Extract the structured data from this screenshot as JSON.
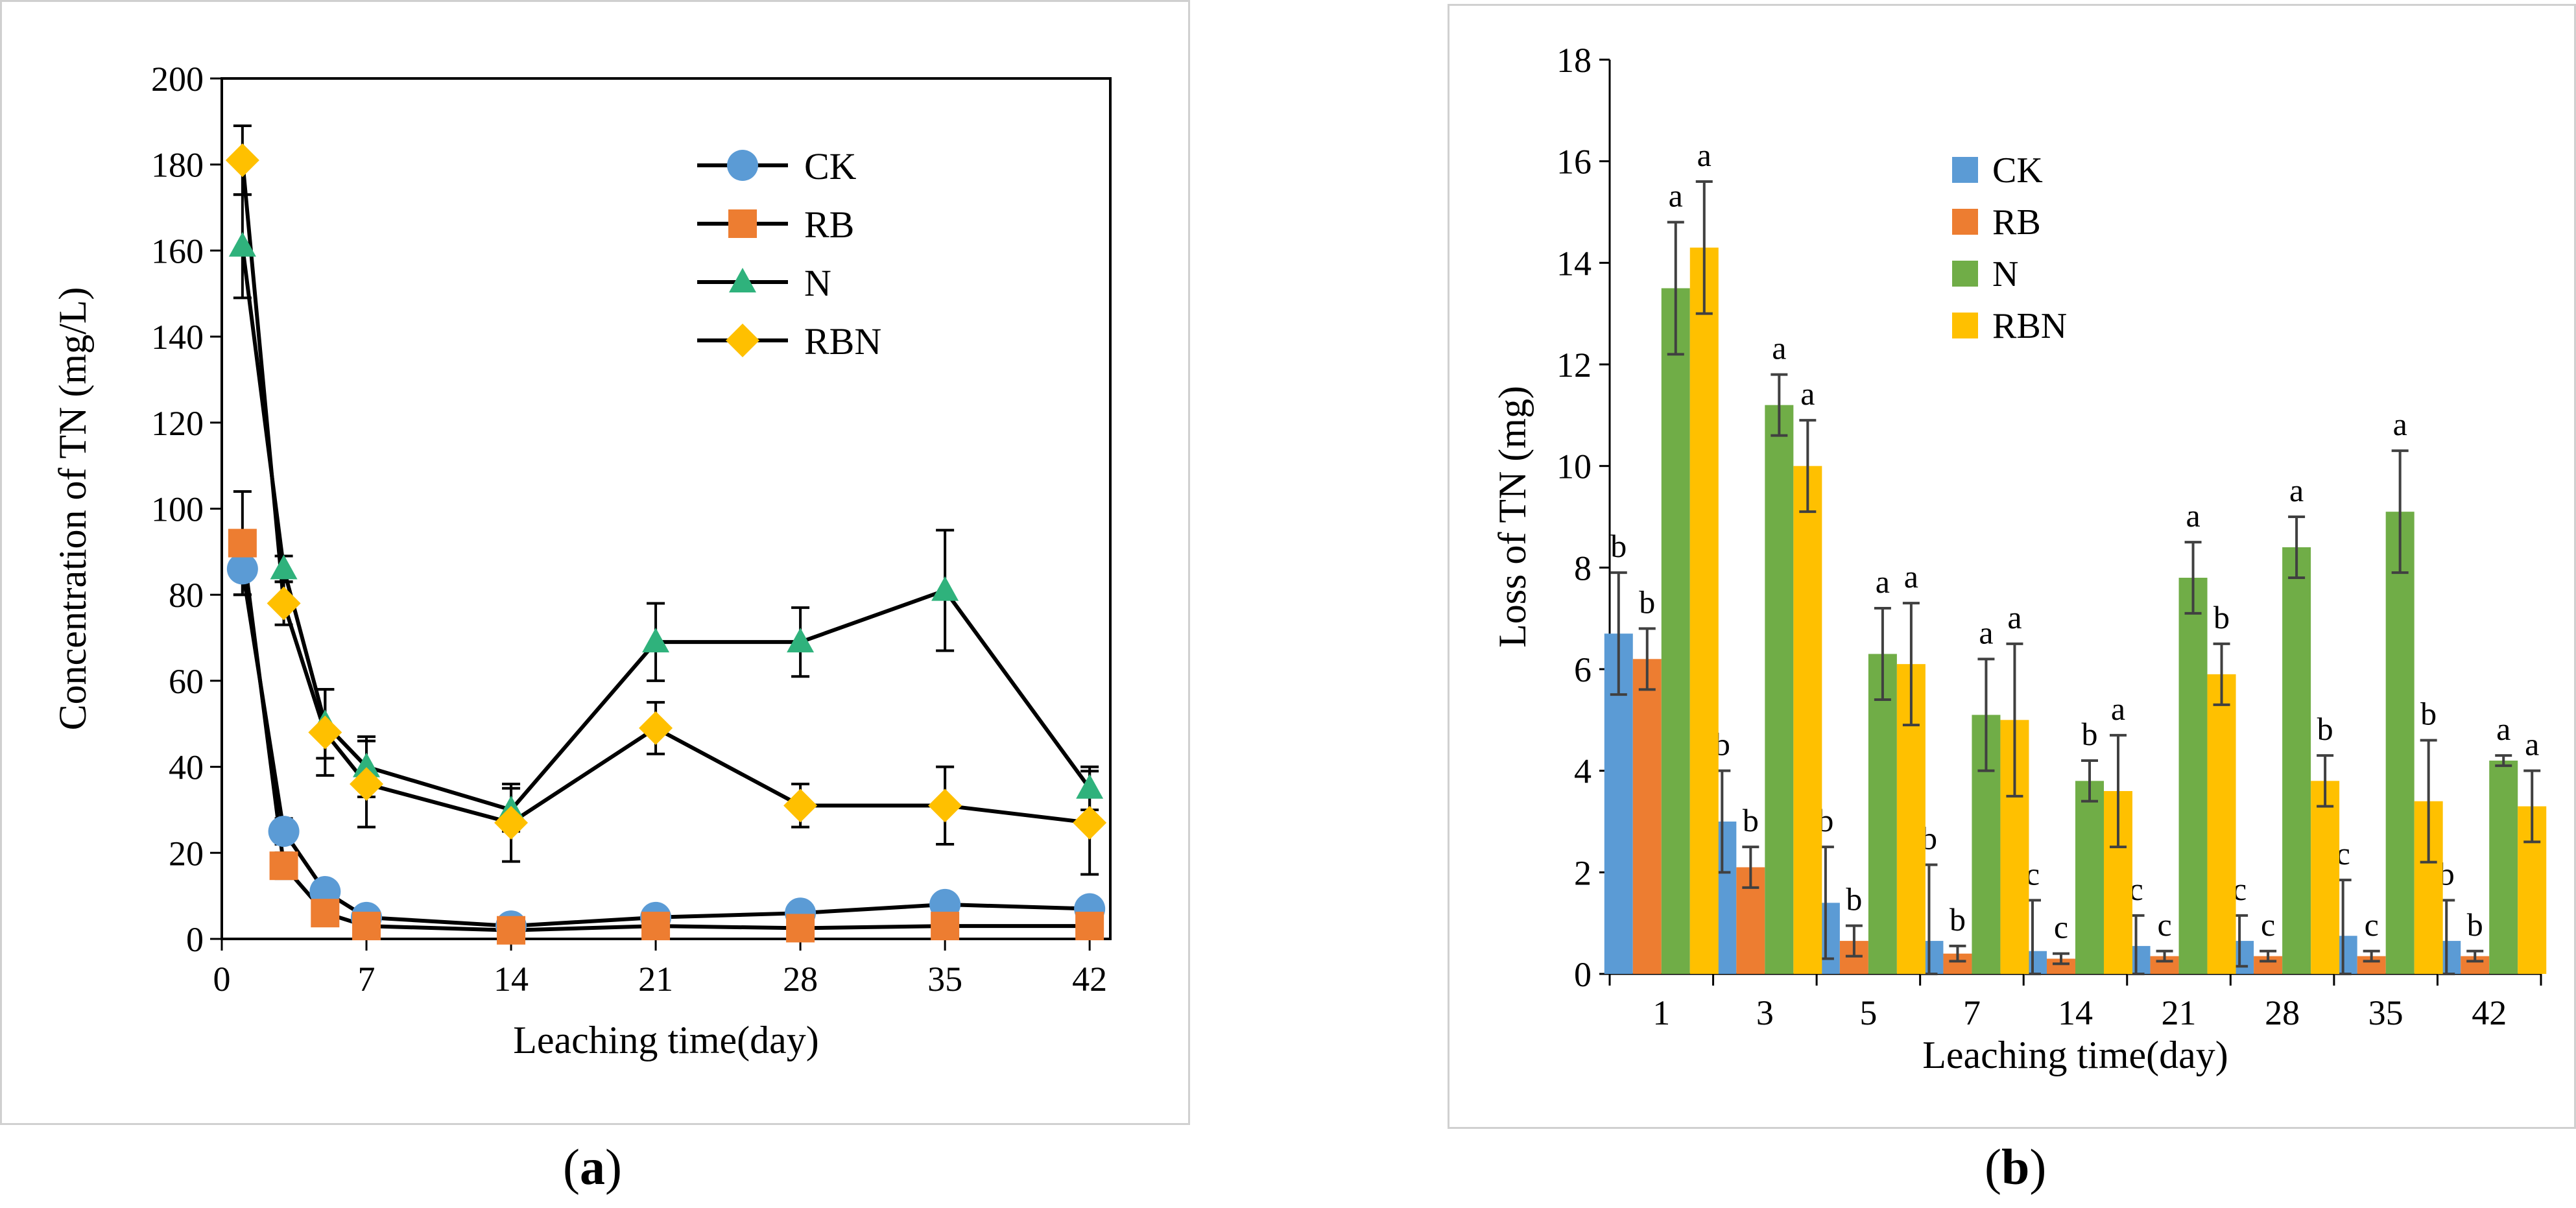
{
  "captions": {
    "a_open": "(",
    "a_letter": "a",
    "a_close": ")",
    "b_open": "(",
    "b_letter": "b",
    "b_close": ")"
  },
  "colors": {
    "CK": "#5B9BD5",
    "RB": "#ED7D31",
    "N": "#2FB27C",
    "RBN": "#FFC000",
    "N_bar": "#70AD47",
    "axis": "#000000"
  },
  "chart_data": [
    {
      "id": "a",
      "type": "line",
      "xlabel": "Leaching time(day)",
      "ylabel": "Concentration of  TN (mg/L)",
      "xlim": [
        0,
        43
      ],
      "ylim": [
        0,
        200
      ],
      "xticks": [
        0,
        7,
        14,
        21,
        28,
        35,
        42
      ],
      "yticks": [
        0,
        20,
        40,
        60,
        80,
        100,
        120,
        140,
        160,
        180,
        200
      ],
      "x": [
        1,
        3,
        5,
        7,
        14,
        21,
        28,
        35,
        42
      ],
      "legend_position": "top-right",
      "series": [
        {
          "name": "CK",
          "marker": "circle",
          "values": [
            86,
            25,
            11,
            5,
            3,
            5,
            6,
            8,
            7
          ],
          "errors": [
            6,
            3,
            2,
            1.5,
            1,
            1.5,
            1.5,
            2,
            1.5
          ]
        },
        {
          "name": "RB",
          "marker": "square",
          "values": [
            92,
            17,
            6,
            3,
            2,
            3,
            2.5,
            3,
            3
          ],
          "errors": [
            12,
            3,
            2,
            1,
            1,
            1,
            1,
            1,
            1
          ]
        },
        {
          "name": "N",
          "marker": "triangle",
          "values": [
            161,
            86,
            50,
            40,
            30,
            69,
            69,
            81,
            35
          ],
          "errors": [
            12,
            3,
            8,
            7,
            5,
            9,
            8,
            14,
            5
          ]
        },
        {
          "name": "RBN",
          "marker": "diamond",
          "values": [
            181,
            78,
            48,
            36,
            27,
            49,
            31,
            31,
            27
          ],
          "errors": [
            8,
            5,
            10,
            10,
            9,
            6,
            5,
            9,
            12
          ]
        }
      ]
    },
    {
      "id": "b",
      "type": "bar",
      "xlabel": "Leaching time(day)",
      "ylabel": "Loss of  TN  (mg)",
      "ylim": [
        0,
        18
      ],
      "yticks": [
        0,
        2,
        4,
        6,
        8,
        10,
        12,
        14,
        16,
        18
      ],
      "categories": [
        "1",
        "3",
        "5",
        "7",
        "14",
        "21",
        "28",
        "35",
        "42"
      ],
      "legend_position": "top-left",
      "series": [
        {
          "name": "CK",
          "values": [
            6.7,
            3.0,
            1.4,
            0.65,
            0.45,
            0.55,
            0.65,
            0.75,
            0.65
          ],
          "errors": [
            1.2,
            1.0,
            1.1,
            1.5,
            1.0,
            0.6,
            0.5,
            1.1,
            0.8
          ],
          "letters": [
            "b",
            "b",
            "b",
            "b",
            "c",
            "c",
            "c",
            "c",
            "b"
          ]
        },
        {
          "name": "RB",
          "values": [
            6.2,
            2.1,
            0.65,
            0.4,
            0.3,
            0.35,
            0.35,
            0.35,
            0.35
          ],
          "errors": [
            0.6,
            0.4,
            0.3,
            0.15,
            0.1,
            0.1,
            0.1,
            0.1,
            0.1
          ],
          "letters": [
            "b",
            "b",
            "b",
            "b",
            "c",
            "c",
            "c",
            "c",
            "b"
          ]
        },
        {
          "name": "N",
          "values": [
            13.5,
            11.2,
            6.3,
            5.1,
            3.8,
            7.8,
            8.4,
            9.1,
            4.2
          ],
          "errors": [
            1.3,
            0.6,
            0.9,
            1.1,
            0.4,
            0.7,
            0.6,
            1.2,
            0.1
          ],
          "letters": [
            "a",
            "a",
            "a",
            "a",
            "b",
            "a",
            "a",
            "a",
            "a"
          ]
        },
        {
          "name": "RBN",
          "values": [
            14.3,
            10.0,
            6.1,
            5.0,
            3.6,
            5.9,
            3.8,
            3.4,
            3.3
          ],
          "errors": [
            1.3,
            0.9,
            1.2,
            1.5,
            1.1,
            0.6,
            0.5,
            1.2,
            0.7
          ],
          "letters": [
            "a",
            "a",
            "a",
            "a",
            "a",
            "b",
            "b",
            "b",
            "a"
          ]
        }
      ]
    }
  ]
}
